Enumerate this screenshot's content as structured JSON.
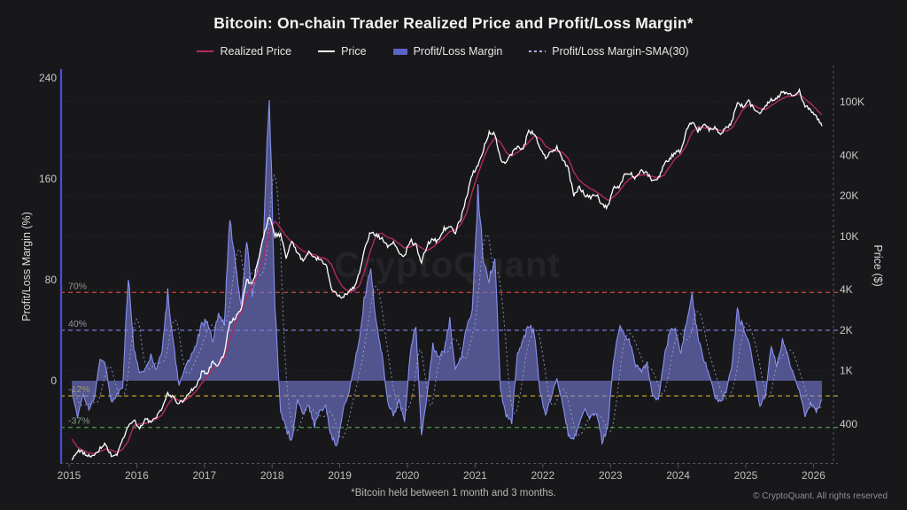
{
  "title": "Bitcoin: On-chain Trader Realized Price and Profit/Loss Margin*",
  "watermark": "CryptoQuant",
  "footnote": "*Bitcoin held between 1 month and 3 months.",
  "copyright": "© CryptoQuant. All rights reserved",
  "colors": {
    "background": "#18181b",
    "price_line": "#ffffff",
    "realized_price_line": "#b22a60",
    "margin_fill": "rgba(122,128,224,0.58)",
    "margin_stroke": "#8890f0",
    "sma_line": "rgba(170,176,236,0.75)",
    "left_spine": "#4a4fd0",
    "axis_gray": "#55555c",
    "grid": "#2d2d33",
    "tick_text": "#c9c9c9"
  },
  "legend": {
    "items": [
      {
        "label": "Realized Price",
        "color": "#b22a60",
        "type": "line"
      },
      {
        "label": "Price",
        "color": "#ffffff",
        "type": "line"
      },
      {
        "label": "Profit/Loss Margin",
        "color": "#5b62c8",
        "type": "area"
      },
      {
        "label": "Profit/Loss Margin-SMA(30)",
        "color": "#a9aee8",
        "type": "dashed-line"
      }
    ]
  },
  "axes": {
    "left": {
      "title": "Profit/Loss Margin (%)",
      "ticks": [
        240,
        160,
        80,
        0
      ]
    },
    "right": {
      "title": "Price ($)",
      "scale": "log",
      "ticks": [
        "100K",
        "40K",
        "20K",
        "10K",
        "4K",
        "2K",
        "1K",
        "400"
      ],
      "tick_values": [
        100000,
        40000,
        20000,
        10000,
        4000,
        2000,
        1000,
        400
      ]
    },
    "x": {
      "ticks": [
        2015,
        2016,
        2017,
        2018,
        2019,
        2020,
        2021,
        2022,
        2023,
        2024,
        2025,
        2026
      ]
    }
  },
  "thresholds": [
    {
      "label": "70%",
      "value": 70,
      "color": "#cf4338",
      "label_color": "#9b9191"
    },
    {
      "label": "40%",
      "value": 40,
      "color": "#7577d6",
      "label_color": "#9596ab"
    },
    {
      "label": "-12%",
      "value": -12,
      "color": "#c4a32c",
      "label_color": "#a59c62"
    },
    {
      "label": "-37%",
      "value": -37,
      "color": "#4d9e4d",
      "label_color": "#809c81"
    }
  ],
  "chart_data": {
    "type": "line",
    "x_start": "2015-01",
    "x_interval": "month",
    "xlim_years": [
      2015,
      2026.2
    ],
    "ylim_left_percent": [
      -60,
      245
    ],
    "ylim_right_dollars": [
      150,
      160000
    ],
    "grid": "horizontal-dotted-at-right-axis-ticks",
    "legend_position": "top",
    "series": [
      {
        "name": "Profit/Loss Margin",
        "axis": "left",
        "unit": "%",
        "style": "area",
        "values": [
          -8,
          -28,
          -12,
          -22,
          -14,
          18,
          12,
          -18,
          -10,
          -5,
          83,
          25,
          5,
          10,
          20,
          8,
          25,
          70,
          30,
          -5,
          10,
          18,
          28,
          45,
          48,
          30,
          55,
          45,
          127,
          95,
          60,
          110,
          70,
          90,
          115,
          230,
          60,
          -25,
          -38,
          -48,
          -15,
          -25,
          -20,
          -35,
          -25,
          -20,
          -45,
          -52,
          -25,
          -12,
          10,
          35,
          70,
          85,
          45,
          20,
          -18,
          -28,
          -15,
          -32,
          22,
          45,
          -45,
          -12,
          28,
          18,
          24,
          48,
          8,
          18,
          42,
          58,
          150,
          95,
          80,
          100,
          -8,
          -28,
          -32,
          22,
          32,
          45,
          38,
          -8,
          -28,
          -12,
          2,
          -18,
          -42,
          -48,
          -32,
          -22,
          -30,
          -25,
          -47,
          -38,
          15,
          42,
          38,
          30,
          12,
          8,
          14,
          -12,
          -16,
          18,
          38,
          42,
          22,
          48,
          68,
          35,
          18,
          5,
          -12,
          -18,
          -8,
          12,
          55,
          42,
          32,
          8,
          -20,
          -12,
          28,
          12,
          32,
          18,
          5,
          -8,
          -28,
          -18,
          -24,
          -15
        ]
      },
      {
        "name": "Price",
        "axis": "right",
        "unit": "$",
        "style": "line",
        "values": [
          217,
          254,
          244,
          236,
          230,
          263,
          284,
          230,
          236,
          314,
          377,
          430,
          368,
          437,
          416,
          448,
          531,
          673,
          624,
          575,
          610,
          700,
          745,
          963,
          970,
          1180,
          1080,
          1350,
          2300,
          2480,
          2870,
          4700,
          4340,
          6450,
          9900,
          14100,
          10200,
          10300,
          6900,
          9250,
          7490,
          6400,
          7730,
          7030,
          6630,
          6300,
          4020,
          3740,
          3460,
          3850,
          4100,
          5320,
          8550,
          10800,
          10100,
          9600,
          8300,
          9200,
          7560,
          7190,
          9350,
          8550,
          6440,
          8630,
          9450,
          9140,
          11350,
          11650,
          10780,
          13800,
          19700,
          29000,
          33100,
          45100,
          58800,
          57700,
          37300,
          35000,
          41500,
          47100,
          43800,
          61300,
          57000,
          46200,
          38500,
          43200,
          45500,
          37700,
          31800,
          19900,
          23300,
          20050,
          19400,
          20500,
          17100,
          16550,
          23100,
          23150,
          28500,
          29250,
          27200,
          30480,
          29230,
          25930,
          26960,
          34650,
          37700,
          42270,
          42580,
          61200,
          71300,
          60640,
          67500,
          62680,
          64600,
          58970,
          63330,
          70220,
          96400,
          93430,
          102000,
          86000,
          82500,
          94500,
          104000,
          107000,
          118000,
          112000,
          114000,
          122000,
          92000,
          88000,
          78000,
          66000
        ]
      },
      {
        "name": "Realized Price",
        "axis": "right",
        "unit": "$",
        "style": "line",
        "values": [
          310,
          270,
          255,
          245,
          240,
          250,
          262,
          255,
          245,
          260,
          300,
          390,
          400,
          405,
          420,
          435,
          470,
          560,
          630,
          600,
          600,
          640,
          700,
          800,
          900,
          1050,
          1100,
          1250,
          1700,
          2300,
          2700,
          3600,
          4300,
          5200,
          7000,
          10500,
          13000,
          11500,
          10000,
          9000,
          8400,
          7800,
          7400,
          7300,
          7000,
          6800,
          6200,
          4900,
          4200,
          3900,
          3900,
          4300,
          5700,
          8000,
          10300,
          10500,
          9800,
          9500,
          8800,
          8200,
          8300,
          8800,
          8200,
          7800,
          8300,
          9000,
          9800,
          10800,
          11200,
          12200,
          15000,
          21500,
          29000,
          38000,
          47000,
          54000,
          50000,
          42000,
          39500,
          42000,
          45000,
          50000,
          55000,
          54000,
          47000,
          44000,
          43000,
          42000,
          38000,
          30000,
          26000,
          24000,
          22500,
          21500,
          20000,
          18500,
          19500,
          21500,
          24500,
          27000,
          28000,
          28500,
          28500,
          27800,
          27000,
          28500,
          33000,
          38000,
          41000,
          48000,
          60000,
          65000,
          64000,
          63500,
          62500,
          61000,
          60500,
          63500,
          74000,
          88000,
          95000,
          94000,
          89000,
          88000,
          94000,
          100000,
          106000,
          110000,
          111500,
          114000,
          105000,
          97000,
          88000,
          80000
        ]
      },
      {
        "name": "Profit/Loss Margin-SMA(30)",
        "axis": "left",
        "unit": "%",
        "style": "dashed",
        "derived_from": "Profit/Loss Margin",
        "derivation": "30-period simple moving average"
      }
    ]
  }
}
